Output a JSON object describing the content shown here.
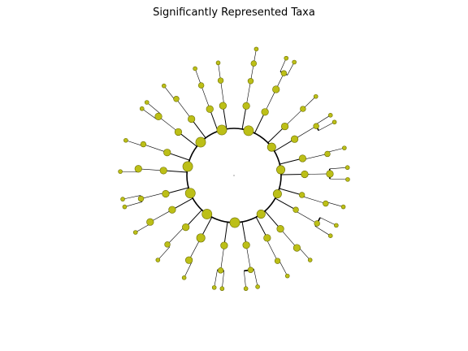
{
  "chart_data": {
    "type": "cladogram",
    "title": "Significantly Represented Taxa",
    "colors": {
      "node_fill": "#bcbf17",
      "node_stroke": "#6b6d00",
      "branch": "#000000",
      "background": "#ffffff"
    },
    "layout": "circular",
    "legend": "none",
    "grid": false,
    "levels": 6,
    "root": "root",
    "highlight_level": 1,
    "tree": {
      "children": [
        {
          "a0": 0,
          "a1": 36,
          "s": 5,
          "children": [
            {
              "a0": 4,
              "a1": 16,
              "s": 3,
              "children": [
                {
                  "a0": 6,
                  "a1": 14,
                  "s": 2,
                  "children": [
                    {
                      "a0": 8,
                      "a1": 12,
                      "s": 2,
                      "children": [
                        {
                          "a0": 10,
                          "a1": 10,
                          "s": 1
                        }
                      ]
                    }
                  ]
                }
              ]
            },
            {
              "a0": 20,
              "a1": 32,
              "s": 3,
              "children": [
                {
                  "a0": 22,
                  "a1": 30,
                  "s": 3,
                  "children": [
                    {
                      "a0": 24,
                      "a1": 28,
                      "s": 2,
                      "children": [
                        {
                          "a0": 24,
                          "a1": 24,
                          "s": 1
                        },
                        {
                          "a0": 28,
                          "a1": 28,
                          "s": 1
                        }
                      ]
                    }
                  ]
                }
              ]
            }
          ]
        },
        {
          "a0": 40,
          "a1": 66,
          "s": 4,
          "children": [
            {
              "a0": 42,
              "a1": 50,
              "s": 3,
              "children": [
                {
                  "a0": 44,
                  "a1": 48,
                  "s": 2,
                  "children": [
                    {
                      "a0": 46,
                      "a1": 46,
                      "s": 1
                    }
                  ]
                }
              ]
            },
            {
              "a0": 54,
              "a1": 64,
              "s": 3,
              "children": [
                {
                  "a0": 56,
                  "a1": 62,
                  "s": 2,
                  "children": [
                    {
                      "a0": 58,
                      "a1": 58,
                      "s": 1
                    },
                    {
                      "a0": 62,
                      "a1": 62,
                      "s": 1
                    }
                  ]
                }
              ]
            }
          ]
        },
        {
          "a0": 70,
          "a1": 96,
          "s": 4,
          "children": [
            {
              "a0": 72,
              "a1": 80,
              "s": 3,
              "children": [
                {
                  "a0": 74,
                  "a1": 80,
                  "s": 2,
                  "children": [
                    {
                      "a0": 76,
                      "a1": 76,
                      "s": 1
                    }
                  ]
                }
              ]
            },
            {
              "a0": 84,
              "a1": 94,
              "s": 3,
              "children": [
                {
                  "a0": 86,
                  "a1": 92,
                  "s": 3,
                  "children": [
                    {
                      "a0": 86,
                      "a1": 86,
                      "s": 1
                    },
                    {
                      "a0": 92,
                      "a1": 92,
                      "s": 1
                    }
                  ]
                }
              ]
            }
          ]
        },
        {
          "a0": 100,
          "a1": 126,
          "s": 4,
          "children": [
            {
              "a0": 102,
              "a1": 110,
              "s": 2,
              "children": [
                {
                  "a0": 104,
                  "a1": 110,
                  "s": 2,
                  "children": [
                    {
                      "a0": 106,
                      "a1": 106,
                      "s": 1
                    }
                  ]
                }
              ]
            },
            {
              "a0": 114,
              "a1": 124,
              "s": 2,
              "children": [
                {
                  "a0": 116,
                  "a1": 124,
                  "s": 2,
                  "children": [
                    {
                      "a0": 116,
                      "a1": 116,
                      "s": 1
                    },
                    {
                      "a0": 122,
                      "a1": 122,
                      "s": 1
                    }
                  ]
                }
              ]
            }
          ]
        },
        {
          "a0": 132,
          "a1": 158,
          "s": 4,
          "children": [
            {
              "a0": 134,
              "a1": 144,
              "s": 3,
              "children": [
                {
                  "a0": 136,
                  "a1": 142,
                  "s": 3,
                  "children": [
                    {
                      "a0": 138,
                      "a1": 138,
                      "s": 1
                    }
                  ]
                }
              ]
            },
            {
              "a0": 148,
              "a1": 156,
              "s": 3,
              "children": [
                {
                  "a0": 150,
                  "a1": 156,
                  "s": 2,
                  "children": [
                    {
                      "a0": 152,
                      "a1": 152,
                      "s": 1
                    }
                  ]
                }
              ]
            }
          ]
        },
        {
          "a0": 162,
          "a1": 196,
          "s": 5,
          "children": [
            {
              "a0": 164,
              "a1": 176,
              "s": 3,
              "children": [
                {
                  "a0": 166,
                  "a1": 174,
                  "s": 2,
                  "children": [
                    {
                      "a0": 168,
                      "a1": 168,
                      "s": 1
                    },
                    {
                      "a0": 174,
                      "a1": 174,
                      "s": 1
                    }
                  ]
                }
              ]
            },
            {
              "a0": 182,
              "a1": 194,
              "s": 3,
              "children": [
                {
                  "a0": 184,
                  "a1": 192,
                  "s": 2,
                  "children": [
                    {
                      "a0": 186,
                      "a1": 186,
                      "s": 1
                    },
                    {
                      "a0": 190,
                      "a1": 190,
                      "s": 1
                    }
                  ]
                }
              ]
            }
          ]
        },
        {
          "a0": 200,
          "a1": 230,
          "s": 5,
          "children": [
            {
              "a0": 202,
              "a1": 214,
              "s": 4,
              "children": [
                {
                  "a0": 204,
                  "a1": 212,
                  "s": 3,
                  "children": [
                    {
                      "a0": 206,
                      "a1": 206,
                      "s": 1
                    }
                  ]
                }
              ]
            },
            {
              "a0": 218,
              "a1": 228,
              "s": 3,
              "children": [
                {
                  "a0": 220,
                  "a1": 228,
                  "s": 2,
                  "children": [
                    {
                      "a0": 222,
                      "a1": 222,
                      "s": 1
                    }
                  ]
                }
              ]
            }
          ]
        },
        {
          "a0": 234,
          "a1": 262,
          "s": 5,
          "children": [
            {
              "a0": 236,
              "a1": 246,
              "s": 3,
              "children": [
                {
                  "a0": 238,
                  "a1": 244,
                  "s": 3,
                  "children": [
                    {
                      "a0": 240,
                      "a1": 240,
                      "s": 1
                    }
                  ]
                }
              ]
            },
            {
              "a0": 250,
              "a1": 260,
              "s": 3,
              "children": [
                {
                  "a0": 252,
                  "a1": 260,
                  "s": 2,
                  "children": [
                    {
                      "a0": 254,
                      "a1": 254,
                      "s": 1
                    },
                    {
                      "a0": 258,
                      "a1": 258,
                      "s": 1
                    }
                  ]
                }
              ]
            }
          ]
        },
        {
          "a0": 266,
          "a1": 296,
          "s": 5,
          "children": [
            {
              "a0": 268,
              "a1": 280,
              "s": 3,
              "children": [
                {
                  "a0": 270,
                  "a1": 278,
                  "s": 3,
                  "children": [
                    {
                      "a0": 272,
                      "a1": 272,
                      "s": 1
                    }
                  ]
                }
              ]
            },
            {
              "a0": 284,
              "a1": 294,
              "s": 3,
              "children": [
                {
                  "a0": 286,
                  "a1": 292,
                  "s": 2,
                  "children": [
                    {
                      "a0": 288,
                      "a1": 288,
                      "s": 1
                    }
                  ]
                }
              ]
            }
          ]
        },
        {
          "a0": 300,
          "a1": 330,
          "s": 5,
          "children": [
            {
              "a0": 302,
              "a1": 314,
              "s": 3,
              "children": [
                {
                  "a0": 304,
                  "a1": 312,
                  "s": 3,
                  "children": [
                    {
                      "a0": 306,
                      "a1": 306,
                      "s": 1
                    },
                    {
                      "a0": 310,
                      "a1": 310,
                      "s": 1
                    }
                  ]
                }
              ]
            },
            {
              "a0": 318,
              "a1": 328,
              "s": 3,
              "children": [
                {
                  "a0": 320,
                  "a1": 326,
                  "s": 2,
                  "children": [
                    {
                      "a0": 322,
                      "a1": 322,
                      "s": 1
                    }
                  ]
                }
              ]
            }
          ]
        },
        {
          "a0": 334,
          "a1": 356,
          "s": 5,
          "children": [
            {
              "a0": 336,
              "a1": 344,
              "s": 3,
              "children": [
                {
                  "a0": 338,
                  "a1": 342,
                  "s": 2,
                  "children": [
                    {
                      "a0": 340,
                      "a1": 340,
                      "s": 1
                    }
                  ]
                }
              ]
            },
            {
              "a0": 348,
              "a1": 354,
              "s": 3,
              "children": [
                {
                  "a0": 350,
                  "a1": 354,
                  "s": 2,
                  "children": [
                    {
                      "a0": 352,
                      "a1": 352,
                      "s": 1
                    }
                  ]
                }
              ]
            }
          ]
        }
      ]
    }
  }
}
